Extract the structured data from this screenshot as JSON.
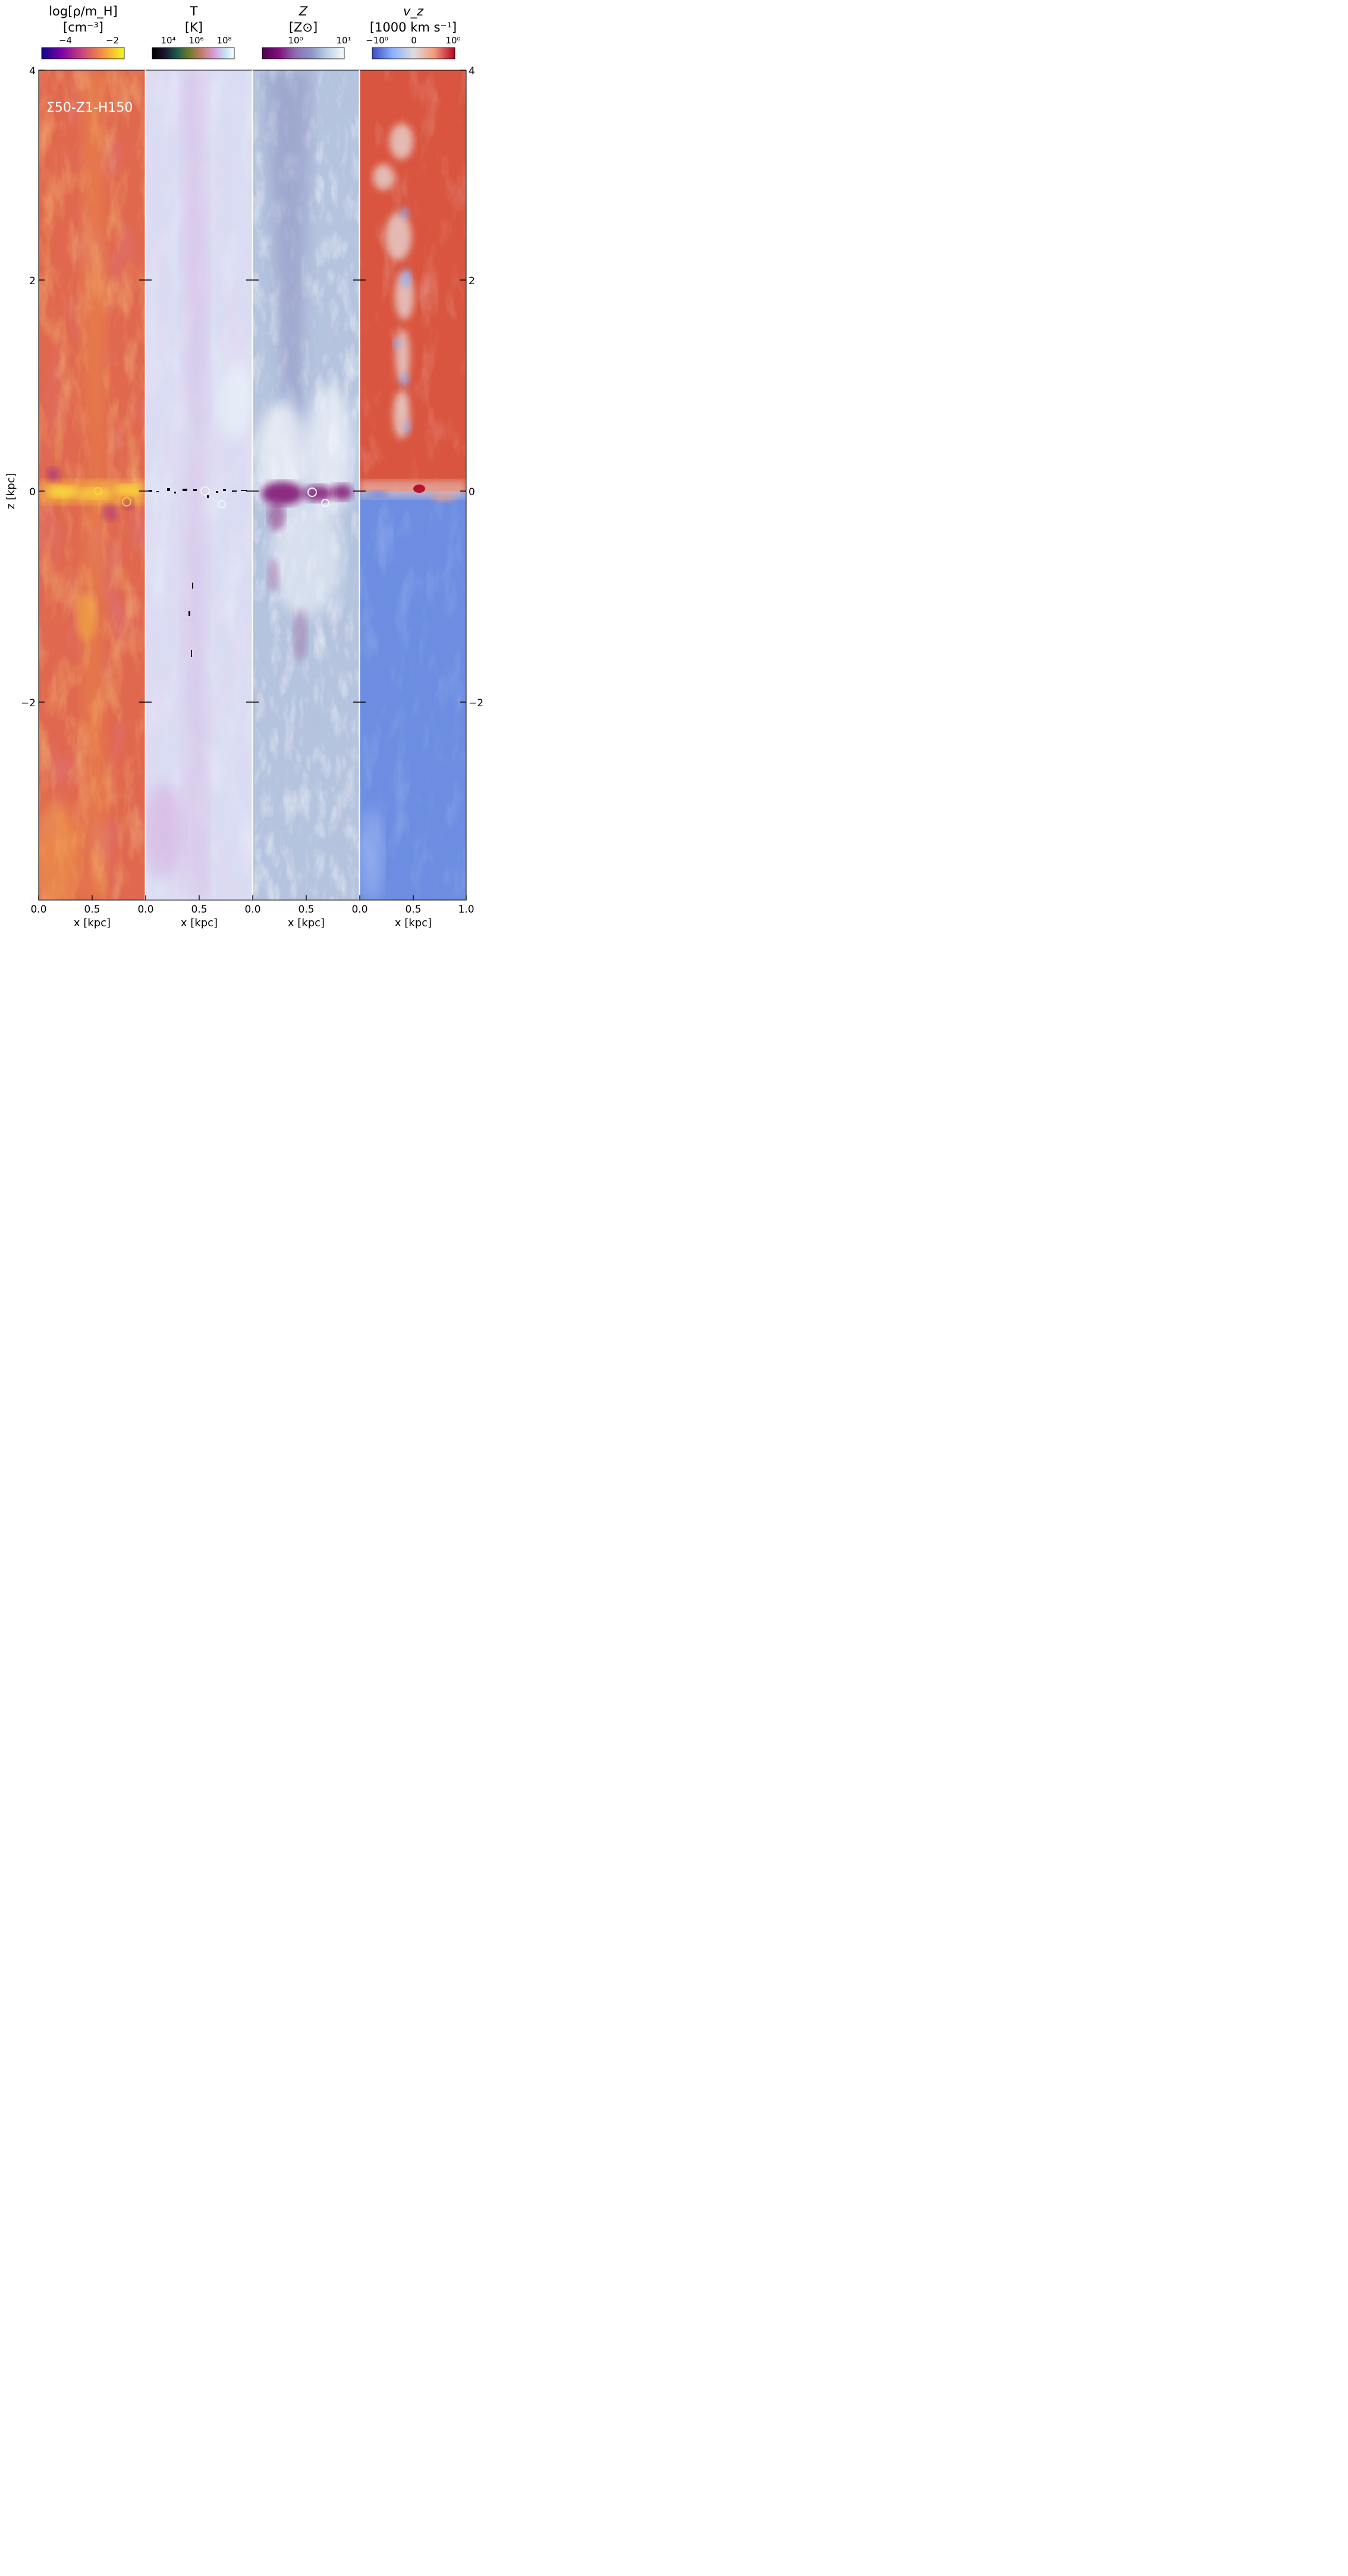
{
  "panel_label": "Σ50-Z1-H150",
  "y_axis_label": "z [kpc]",
  "x_axis_label": "x [kpc]",
  "y_ticks": [
    "4",
    "2",
    "0",
    "−2"
  ],
  "x_ticks": [
    "0.0",
    "0.5",
    "0.0",
    "0.5",
    "0.0",
    "0.5",
    "0.0",
    "0.5",
    "1.0"
  ],
  "panels": [
    {
      "quantity": "density",
      "colormap": "plasma",
      "colorbar_title_line1": "log[ρ/m_H]",
      "colorbar_title_line2": "[cm⁻³]",
      "colorbar_ticks": [
        "−4",
        "−2"
      ],
      "colors": {
        "background": "#e0694f",
        "bright": "#f9c53a",
        "dark": "#b83e85"
      }
    },
    {
      "quantity": "temperature",
      "colormap": "cubehelix",
      "colorbar_title_line1": "T",
      "colorbar_title_line2": "[K]",
      "colorbar_ticks": [
        "10⁴",
        "10⁶",
        "10⁸"
      ],
      "colors": {
        "background": "#d8dcf2",
        "bright": "#eef6f8",
        "dark": "#d9a8d8"
      }
    },
    {
      "quantity": "metallicity",
      "colormap": "BuPu_r",
      "colorbar_title_line1": "Z",
      "colorbar_title_line2": "[Z⊙]",
      "colorbar_ticks": [
        "10⁰",
        "10¹"
      ],
      "colors": {
        "background": "#b6c5de",
        "bright": "#f2f6fb",
        "dark": "#7d0f6e"
      }
    },
    {
      "quantity": "vertical-velocity",
      "colormap": "coolwarm",
      "colorbar_title_line1": "v_z",
      "colorbar_title_line2": "[1000 km s⁻¹]",
      "colorbar_ticks": [
        "−10⁰",
        "0",
        "10⁰"
      ],
      "colors": {
        "upper": "#d9553f",
        "lower": "#6a8be0",
        "mid": "#e8d8d0"
      }
    }
  ]
}
